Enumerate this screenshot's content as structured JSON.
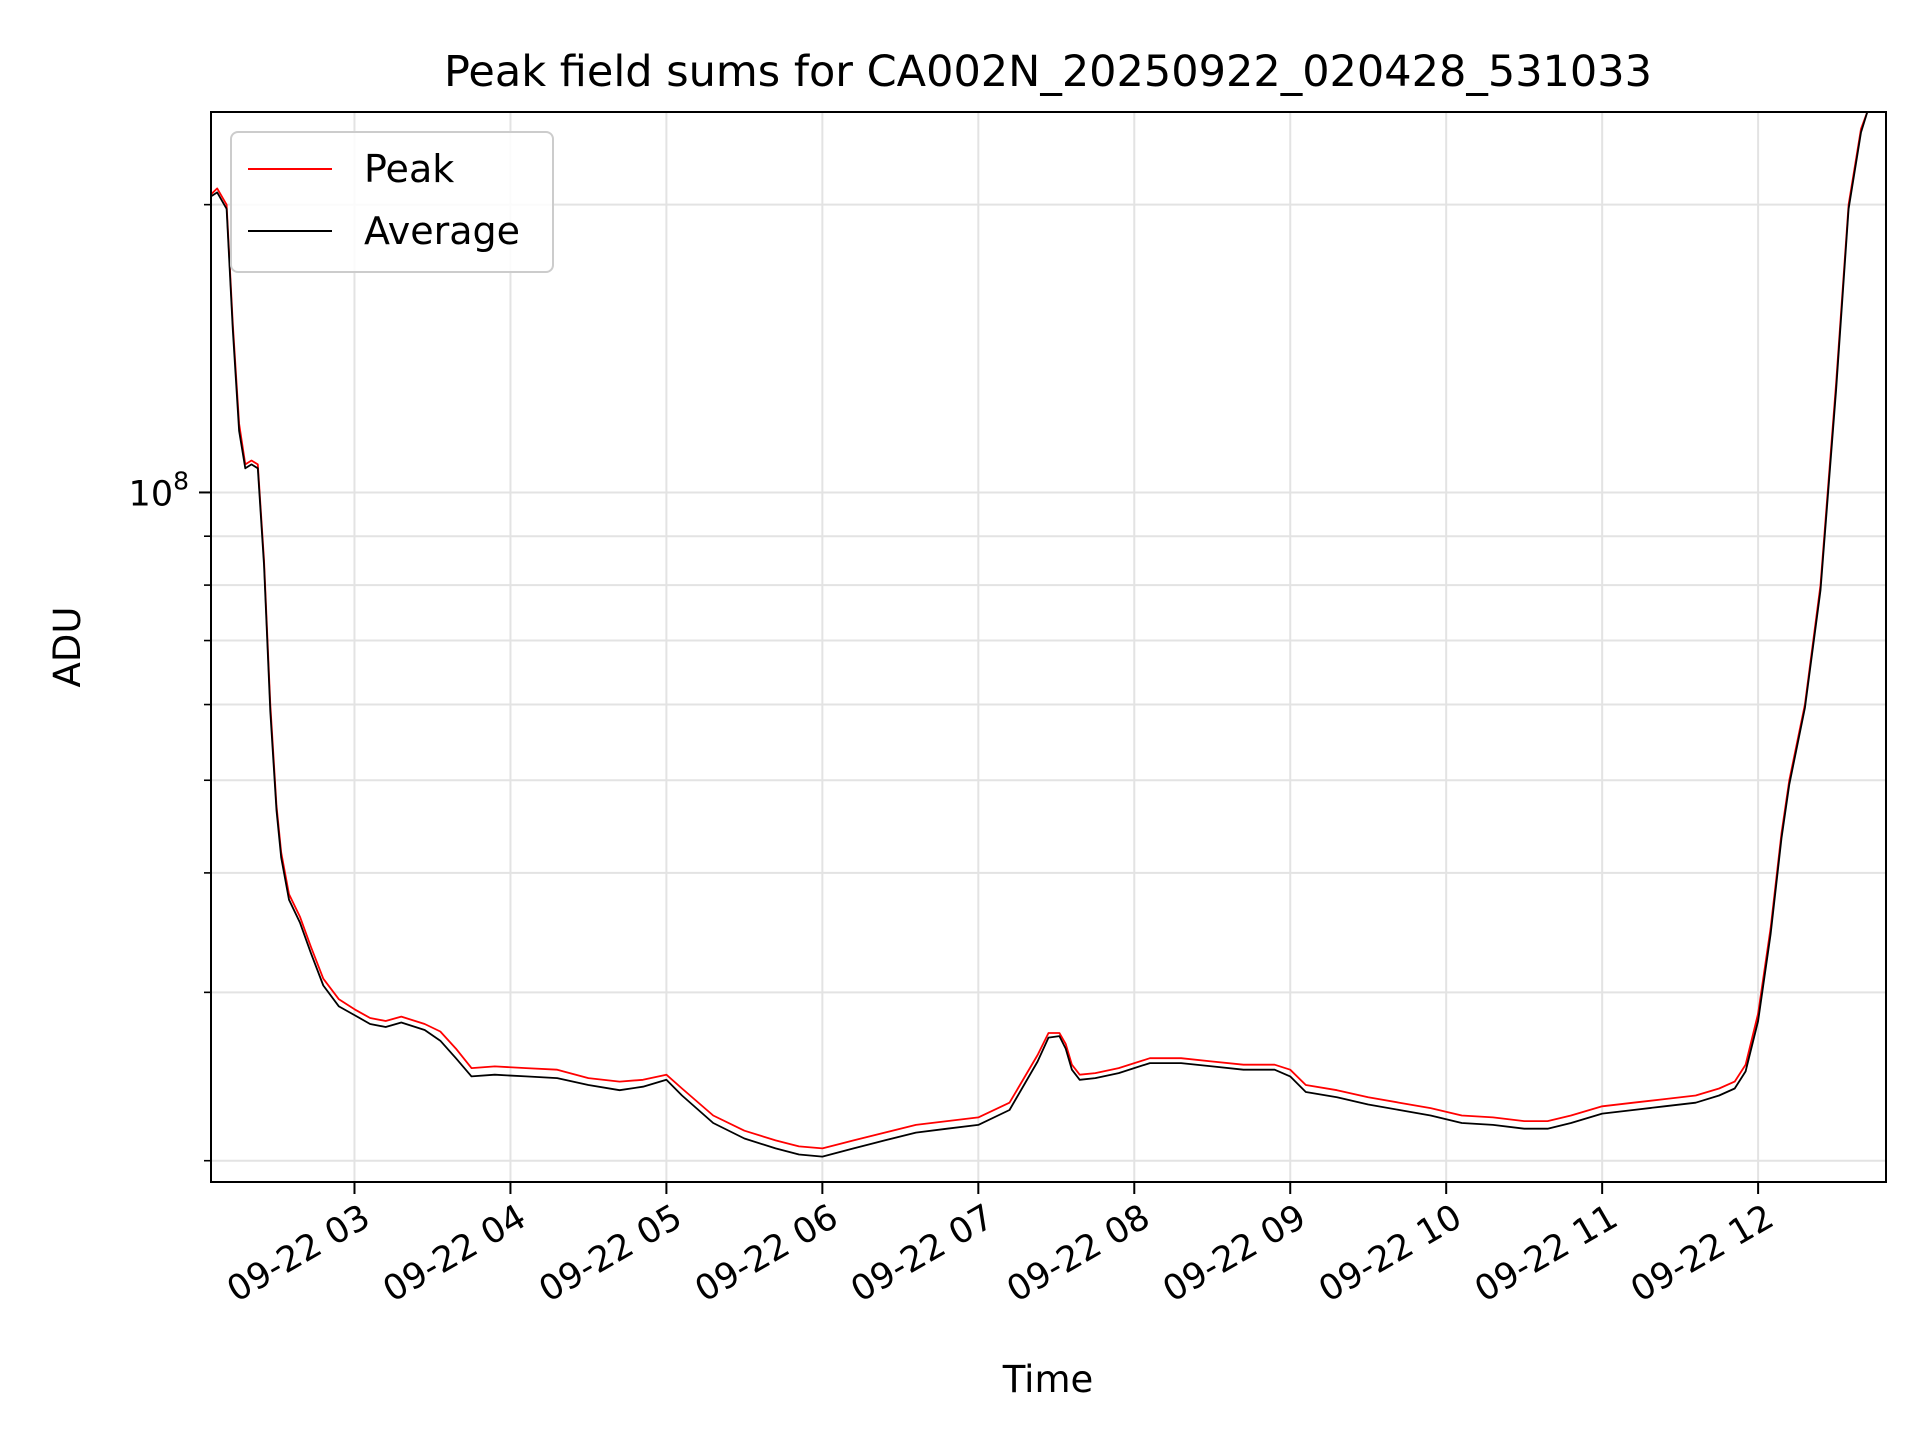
{
  "chart_data": {
    "type": "line",
    "title": "Peak field sums for CA002N_20250922_020428_531033",
    "xlabel": "Time",
    "ylabel": "ADU",
    "y_scale": "log",
    "ylim": [
      19000000,
      250000000
    ],
    "x_unit": "hours since 09-22 00:00",
    "xlim": [
      2.08,
      12.82
    ],
    "x_ticks": [
      {
        "value": 3,
        "label": "09-22 03"
      },
      {
        "value": 4,
        "label": "09-22 04"
      },
      {
        "value": 5,
        "label": "09-22 05"
      },
      {
        "value": 6,
        "label": "09-22 06"
      },
      {
        "value": 7,
        "label": "09-22 07"
      },
      {
        "value": 8,
        "label": "09-22 08"
      },
      {
        "value": 9,
        "label": "09-22 09"
      },
      {
        "value": 10,
        "label": "09-22 10"
      },
      {
        "value": 11,
        "label": "09-22 11"
      },
      {
        "value": 12,
        "label": "09-22 12"
      }
    ],
    "y_major_ticks": [
      {
        "value": 100000000,
        "base": "10",
        "exp": "8"
      }
    ],
    "y_minor_ticks": [
      20000000,
      30000000,
      40000000,
      50000000,
      60000000,
      70000000,
      80000000,
      90000000,
      200000000
    ],
    "grid": true,
    "legend": {
      "placement": "upper-left"
    },
    "series": [
      {
        "name": "Peak",
        "color": "#ff0000",
        "x": [
          2.08,
          2.12,
          2.18,
          2.22,
          2.26,
          2.3,
          2.34,
          2.38,
          2.42,
          2.46,
          2.5,
          2.53,
          2.58,
          2.65,
          2.72,
          2.8,
          2.9,
          3.0,
          3.1,
          3.2,
          3.3,
          3.45,
          3.55,
          3.65,
          3.75,
          3.9,
          4.1,
          4.3,
          4.5,
          4.7,
          4.85,
          5.0,
          5.1,
          5.3,
          5.5,
          5.7,
          5.85,
          6.0,
          6.2,
          6.4,
          6.6,
          6.8,
          7.0,
          7.2,
          7.38,
          7.45,
          7.52,
          7.56,
          7.6,
          7.65,
          7.75,
          7.9,
          8.1,
          8.3,
          8.5,
          8.7,
          8.9,
          9.0,
          9.1,
          9.3,
          9.5,
          9.7,
          9.9,
          10.1,
          10.3,
          10.5,
          10.65,
          10.8,
          11.0,
          11.2,
          11.4,
          11.6,
          11.75,
          11.85,
          11.92,
          12.0,
          12.08,
          12.15,
          12.2,
          12.3,
          12.4,
          12.5,
          12.58,
          12.66,
          12.7
        ],
        "y": [
          205000000,
          208000000,
          200000000,
          150000000,
          118000000,
          107000000,
          108000000,
          107000000,
          85000000,
          60000000,
          47000000,
          42000000,
          38000000,
          36000000,
          33500000,
          31000000,
          29500000,
          28800000,
          28200000,
          28000000,
          28300000,
          27800000,
          27300000,
          26200000,
          25000000,
          25100000,
          25000000,
          24900000,
          24400000,
          24200000,
          24300000,
          24600000,
          23800000,
          22300000,
          21500000,
          21000000,
          20700000,
          20600000,
          21000000,
          21400000,
          21800000,
          22000000,
          22200000,
          23000000,
          25800000,
          27200000,
          27200000,
          26500000,
          25200000,
          24600000,
          24700000,
          25000000,
          25600000,
          25600000,
          25400000,
          25200000,
          25200000,
          24900000,
          24000000,
          23700000,
          23300000,
          23000000,
          22700000,
          22300000,
          22200000,
          22000000,
          22000000,
          22300000,
          22800000,
          23000000,
          23200000,
          23400000,
          23800000,
          24200000,
          25200000,
          28500000,
          35000000,
          44000000,
          50000000,
          60000000,
          80000000,
          130000000,
          200000000,
          240000000,
          250000000
        ]
      },
      {
        "name": "Average",
        "color": "#000000",
        "x": [
          2.08,
          2.12,
          2.18,
          2.22,
          2.26,
          2.3,
          2.34,
          2.38,
          2.42,
          2.46,
          2.5,
          2.53,
          2.58,
          2.65,
          2.72,
          2.8,
          2.9,
          3.0,
          3.1,
          3.2,
          3.3,
          3.45,
          3.55,
          3.65,
          3.75,
          3.9,
          4.1,
          4.3,
          4.5,
          4.7,
          4.85,
          5.0,
          5.1,
          5.3,
          5.5,
          5.7,
          5.85,
          6.0,
          6.2,
          6.4,
          6.6,
          6.8,
          7.0,
          7.2,
          7.38,
          7.45,
          7.52,
          7.56,
          7.6,
          7.65,
          7.75,
          7.9,
          8.1,
          8.3,
          8.5,
          8.7,
          8.9,
          9.0,
          9.1,
          9.3,
          9.5,
          9.7,
          9.9,
          10.1,
          10.3,
          10.5,
          10.65,
          10.8,
          11.0,
          11.2,
          11.4,
          11.6,
          11.75,
          11.85,
          11.92,
          12.0,
          12.08,
          12.15,
          12.2,
          12.3,
          12.4,
          12.5,
          12.58,
          12.66,
          12.7
        ],
        "y": [
          204000000,
          206000000,
          198000000,
          148000000,
          116000000,
          106000000,
          107000000,
          106000000,
          84000000,
          59000000,
          46500000,
          41500000,
          37500000,
          35500000,
          33000000,
          30500000,
          29000000,
          28400000,
          27800000,
          27600000,
          27900000,
          27400000,
          26700000,
          25600000,
          24500000,
          24600000,
          24500000,
          24400000,
          24000000,
          23700000,
          23900000,
          24300000,
          23400000,
          21900000,
          21100000,
          20600000,
          20300000,
          20200000,
          20600000,
          21000000,
          21400000,
          21600000,
          21800000,
          22600000,
          25400000,
          26900000,
          27000000,
          26200000,
          24900000,
          24300000,
          24400000,
          24700000,
          25300000,
          25300000,
          25100000,
          24900000,
          24900000,
          24500000,
          23600000,
          23300000,
          22900000,
          22600000,
          22300000,
          21900000,
          21800000,
          21600000,
          21600000,
          21900000,
          22400000,
          22600000,
          22800000,
          23000000,
          23400000,
          23800000,
          24800000,
          28000000,
          34500000,
          43500000,
          49500000,
          59500000,
          79000000,
          128000000,
          198000000,
          238000000,
          250000000
        ]
      }
    ]
  }
}
